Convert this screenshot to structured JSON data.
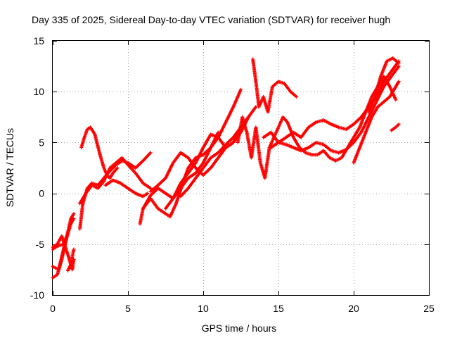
{
  "chart_data": {
    "type": "scatter",
    "title": "Day 335 of 2025, Sidereal Day-to-day VTEC variation (SDTVAR) for receiver hugh",
    "xlabel": "GPS time / hours",
    "ylabel": "SDTVAR / TECUs",
    "xlim": [
      0,
      25
    ],
    "ylim": [
      -10,
      15
    ],
    "xticks": [
      "0",
      "5",
      "10",
      "15",
      "20",
      "25"
    ],
    "yticks": [
      "-10",
      "-5",
      "0",
      "5",
      "10",
      "15"
    ],
    "grid": true,
    "marker": "+",
    "color": "#ff0000",
    "series": [
      {
        "x": [
          0.0,
          0.3,
          0.6,
          0.9,
          1.2,
          1.4
        ],
        "y": [
          -8.3,
          -8.0,
          -6.5,
          -4.5,
          -2.5,
          -2.0
        ]
      },
      {
        "x": [
          0.0,
          0.4,
          0.8,
          1.2,
          1.4
        ],
        "y": [
          -7.2,
          -7.5,
          -5.0,
          -3.0,
          -2.5
        ]
      },
      {
        "x": [
          0.0,
          0.3,
          0.6,
          1.0,
          1.3,
          1.4
        ],
        "y": [
          -5.3,
          -5.0,
          -4.2,
          -6.0,
          -7.5,
          -6.5
        ]
      },
      {
        "x": [
          0.0,
          0.3,
          0.7,
          1.0
        ],
        "y": [
          -5.5,
          -5.2,
          -5.0,
          -4.0
        ]
      },
      {
        "x": [
          1.0,
          1.2,
          1.4
        ],
        "y": [
          -7.6,
          -7.0,
          -5.5
        ]
      },
      {
        "x": [
          1.9,
          2.1,
          2.3,
          2.5,
          2.8,
          3.0,
          3.2,
          3.4,
          3.6,
          3.8,
          4.0,
          4.3
        ],
        "y": [
          4.5,
          5.5,
          6.3,
          6.5,
          5.8,
          4.6,
          3.5,
          2.5,
          1.8,
          1.5,
          2.0,
          2.5
        ]
      },
      {
        "x": [
          1.8,
          2.0,
          2.3,
          2.6,
          3.0,
          3.4,
          3.8,
          4.2,
          4.6,
          5.0,
          5.5,
          6.0,
          6.5
        ],
        "y": [
          -3.5,
          -1.0,
          0.5,
          1.0,
          0.8,
          1.5,
          2.2,
          2.8,
          3.2,
          3.0,
          2.5,
          3.2,
          4.0
        ]
      },
      {
        "x": [
          1.8,
          2.2,
          2.6,
          3.0,
          3.4,
          3.8,
          4.2,
          4.6,
          5.0,
          5.5,
          6.0,
          6.5
        ],
        "y": [
          -1.0,
          0.0,
          0.8,
          0.5,
          1.2,
          2.5,
          3.0,
          3.5,
          2.8,
          2.0,
          1.0,
          0.5
        ]
      },
      {
        "x": [
          3.5,
          4.0,
          4.5,
          5.0,
          5.5,
          6.0,
          6.3
        ],
        "y": [
          0.8,
          1.3,
          1.0,
          0.5,
          0.0,
          -0.3,
          0.0
        ]
      },
      {
        "x": [
          5.8,
          6.0,
          6.5,
          7.0,
          7.5,
          7.8,
          8.2,
          8.6,
          9.0,
          9.5,
          10.0,
          10.5,
          11.0,
          11.5,
          12.0,
          12.5
        ],
        "y": [
          -3.0,
          -1.5,
          -0.5,
          -1.5,
          -2.0,
          -2.3,
          -1.0,
          0.8,
          2.5,
          3.5,
          3.8,
          4.5,
          5.5,
          7.0,
          8.5,
          10.2
        ]
      },
      {
        "x": [
          6.0,
          6.5,
          7.0,
          7.5,
          8.0,
          8.5,
          9.0,
          9.5,
          10.0,
          10.5,
          11.0
        ],
        "y": [
          -1.5,
          -0.2,
          0.5,
          0.0,
          -0.5,
          0.5,
          1.5,
          2.0,
          3.0,
          4.5,
          6.0
        ]
      },
      {
        "x": [
          6.5,
          7.0,
          7.5,
          8.0,
          8.5,
          9.0,
          9.5,
          10.0,
          10.5,
          11.0,
          11.5,
          12.0,
          12.5,
          13.0
        ],
        "y": [
          0.2,
          0.8,
          1.5,
          3.0,
          4.0,
          3.5,
          2.5,
          1.8,
          2.5,
          3.5,
          4.5,
          5.0,
          6.5,
          7.5
        ]
      },
      {
        "x": [
          7.5,
          8.0,
          8.5,
          9.0,
          9.5,
          10.0,
          10.5,
          11.0,
          11.5,
          12.0,
          12.5,
          13.0,
          13.5
        ],
        "y": [
          -1.5,
          -0.5,
          1.0,
          2.0,
          3.0,
          4.5,
          5.8,
          5.5,
          4.5,
          5.0,
          6.0,
          7.5,
          8.5
        ]
      },
      {
        "x": [
          8.5,
          9.0,
          9.5,
          10.0,
          10.5,
          11.0,
          11.5,
          12.0,
          12.5,
          13.0
        ],
        "y": [
          -0.3,
          0.5,
          1.5,
          2.5,
          3.5,
          4.0,
          4.8,
          5.5,
          6.5,
          7.5
        ]
      },
      {
        "x": [
          12.3,
          12.6,
          12.9,
          13.2,
          13.5,
          13.8,
          14.1,
          14.4,
          14.7,
          15.0,
          15.3,
          15.6,
          16.0,
          16.4,
          16.8,
          17.2,
          17.6,
          18.0,
          18.4,
          18.8,
          19.2,
          19.6,
          20.0,
          20.4,
          20.8,
          21.2,
          21.6,
          22.0,
          22.4,
          22.8
        ],
        "y": [
          5.0,
          7.5,
          6.0,
          3.5,
          6.5,
          3.0,
          1.5,
          4.5,
          5.5,
          6.5,
          7.5,
          7.0,
          5.5,
          4.5,
          4.0,
          3.8,
          3.8,
          4.2,
          3.5,
          3.2,
          3.5,
          4.5,
          5.5,
          6.5,
          8.0,
          9.5,
          10.5,
          11.5,
          10.5,
          9.2
        ]
      },
      {
        "x": [
          13.3,
          13.5,
          13.7,
          14.0,
          14.3,
          14.6,
          15.0,
          15.4,
          15.8,
          16.2
        ],
        "y": [
          13.2,
          11.0,
          8.5,
          9.5,
          8.0,
          10.5,
          11.0,
          10.8,
          10.0,
          9.5
        ]
      },
      {
        "x": [
          14.0,
          14.5,
          15.0,
          15.5,
          16.0,
          16.5,
          17.0,
          17.5,
          18.0,
          18.5,
          19.0,
          19.5,
          20.0,
          20.5,
          21.0,
          21.5,
          22.0,
          22.5,
          23.0
        ],
        "y": [
          5.5,
          6.0,
          5.0,
          5.5,
          6.0,
          5.5,
          6.5,
          7.0,
          7.2,
          6.8,
          6.5,
          6.3,
          6.8,
          7.5,
          8.5,
          9.5,
          11.0,
          12.0,
          13.0
        ]
      },
      {
        "x": [
          14.5,
          15.0,
          15.5,
          16.0,
          16.5,
          17.0,
          17.5,
          18.0,
          18.5,
          19.0,
          19.5,
          20.0,
          20.5,
          21.0,
          21.5,
          22.0,
          22.5,
          23.0
        ],
        "y": [
          4.5,
          5.0,
          4.8,
          4.5,
          4.2,
          4.5,
          5.0,
          4.8,
          4.2,
          4.0,
          4.3,
          5.0,
          6.0,
          7.5,
          9.0,
          10.5,
          11.5,
          12.5
        ]
      },
      {
        "x": [
          20.0,
          20.4,
          20.8,
          21.2,
          21.6,
          22.0,
          22.4,
          22.8,
          23.0
        ],
        "y": [
          3.0,
          4.5,
          6.0,
          7.5,
          8.5,
          9.0,
          9.5,
          10.5,
          11.0
        ]
      },
      {
        "x": [
          21.0,
          21.4,
          21.8,
          22.2,
          22.6,
          23.0
        ],
        "y": [
          8.0,
          9.5,
          11.5,
          13.0,
          13.3,
          12.8
        ]
      },
      {
        "x": [
          22.5,
          22.8,
          23.0
        ],
        "y": [
          6.2,
          6.5,
          6.8
        ]
      }
    ]
  }
}
